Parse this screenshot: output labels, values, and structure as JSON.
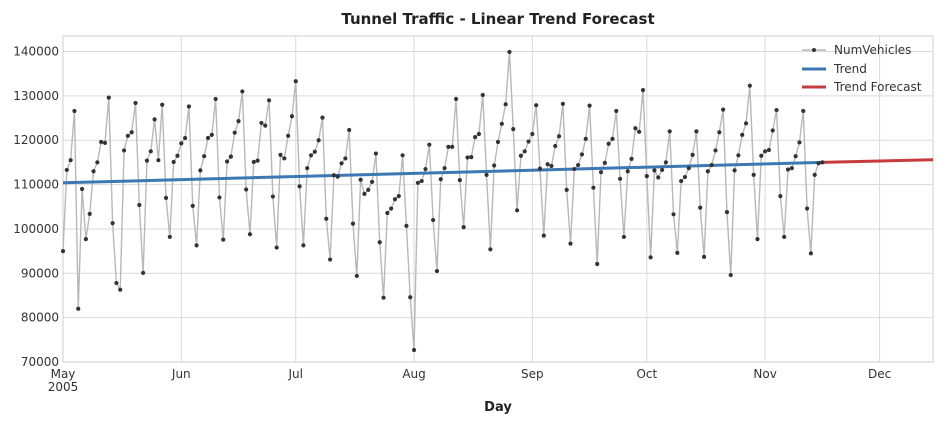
{
  "chart_data": {
    "type": "line",
    "title": "Tunnel Traffic - Linear Trend Forecast",
    "xlabel": "Day",
    "ylabel": "",
    "x_range": [
      "2005-05-01",
      "2005-12-15"
    ],
    "ylim": [
      70000,
      143500
    ],
    "grid": true,
    "legend_position": "top-right",
    "y_ticks": [
      70000,
      80000,
      90000,
      100000,
      110000,
      120000,
      130000,
      140000
    ],
    "x_ticks": [
      {
        "date": "2005-05-01",
        "label": "May",
        "sublabel": "2005"
      },
      {
        "date": "2005-06-01",
        "label": "Jun",
        "sublabel": ""
      },
      {
        "date": "2005-07-01",
        "label": "Jul",
        "sublabel": ""
      },
      {
        "date": "2005-08-01",
        "label": "Aug",
        "sublabel": ""
      },
      {
        "date": "2005-09-01",
        "label": "Sep",
        "sublabel": ""
      },
      {
        "date": "2005-10-01",
        "label": "Oct",
        "sublabel": ""
      },
      {
        "date": "2005-11-01",
        "label": "Nov",
        "sublabel": ""
      },
      {
        "date": "2005-12-01",
        "label": "Dec",
        "sublabel": ""
      }
    ],
    "series": [
      {
        "name": "NumVehicles",
        "style": "line-with-markers",
        "color": "#b8b8b8",
        "marker_color": "#333333",
        "x_start": "2005-05-01",
        "x_step_days": 1,
        "values": [
          95000,
          113300,
          115500,
          126600,
          82000,
          109000,
          97700,
          103400,
          113000,
          115000,
          119600,
          119400,
          129600,
          101300,
          87800,
          86300,
          117700,
          121000,
          121800,
          128400,
          105400,
          90100,
          115400,
          117500,
          124700,
          115500,
          128000,
          107000,
          98200,
          115100,
          116500,
          119300,
          120500,
          127600,
          105200,
          96300,
          113200,
          116400,
          120500,
          121200,
          129300,
          107100,
          97600,
          115200,
          116300,
          121700,
          124300,
          131000,
          108900,
          98800,
          115100,
          115400,
          123900,
          123300,
          129000,
          107300,
          95800,
          116700,
          115900,
          121000,
          125400,
          133300,
          109600,
          96300,
          113700,
          116600,
          117400,
          120000,
          125100,
          102300,
          93100,
          112100,
          111800,
          114800,
          115900,
          122300,
          101200,
          89400,
          111100,
          107900,
          108800,
          110600,
          117000,
          97000,
          84500,
          103600,
          104600,
          106700,
          107400,
          116600,
          100700,
          84600,
          72700,
          110400,
          110800,
          113500,
          119000,
          102000,
          90500,
          111200,
          113700,
          118500,
          118500,
          129300,
          111000,
          100400,
          116100,
          116200,
          120700,
          121400,
          130200,
          112200,
          95400,
          114300,
          119600,
          123700,
          128100,
          139900,
          122500,
          104200,
          116500,
          117500,
          119700,
          121400,
          127900,
          113600,
          98500,
          114600,
          114200,
          118700,
          120900,
          128200,
          108800,
          96700,
          113500,
          114400,
          116800,
          120300,
          127800,
          109300,
          92100,
          112800,
          114900,
          119200,
          120300,
          126600,
          111300,
          98200,
          113000,
          115800,
          122700,
          121900,
          131300,
          111900,
          93600,
          113200,
          111600,
          113300,
          115000,
          122000,
          103300,
          94600,
          110800,
          111700,
          113700,
          116700,
          122000,
          104800,
          93700,
          113000,
          114400,
          117700,
          121800,
          126900,
          103800,
          89600,
          113200,
          116600,
          121200,
          123800,
          132300,
          112200,
          97700,
          116500,
          117500,
          117800,
          122200,
          126800,
          107400,
          98200,
          113400,
          113700,
          116400,
          119500,
          126600,
          104600,
          94500,
          112200,
          114800,
          115000
        ]
      },
      {
        "name": "Trend",
        "style": "line",
        "color": "#3d78b4",
        "points": [
          [
            "2005-05-01",
            110400
          ],
          [
            "2005-11-16",
            115000
          ]
        ]
      },
      {
        "name": "Trend Forecast",
        "style": "line",
        "color": "#c63c3c",
        "points": [
          [
            "2005-11-16",
            115000
          ],
          [
            "2005-12-15",
            115600
          ]
        ]
      }
    ]
  }
}
